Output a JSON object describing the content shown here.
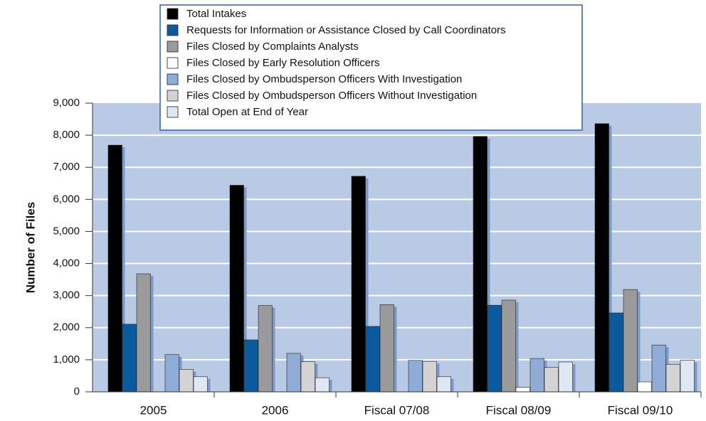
{
  "chart_data": {
    "type": "bar",
    "y_label": "Number of Files",
    "categories": [
      "2005",
      "2006",
      "Fiscal 07/08",
      "Fiscal 08/09",
      "Fiscal 09/10"
    ],
    "series": [
      {
        "name": "Total Intakes",
        "color": "#000000",
        "values": [
          7690,
          6440,
          6720,
          7960,
          8360
        ]
      },
      {
        "name": "Requests for Information or Assistance Closed by Call Coordinators",
        "color": "#0b5a9e",
        "values": [
          2110,
          1620,
          2040,
          2700,
          2460
        ]
      },
      {
        "name": "Files Closed by Complaints Analysts",
        "color": "#9a9a9a",
        "values": [
          3680,
          2690,
          2720,
          2860,
          3190
        ]
      },
      {
        "name": "Files Closed by Early Resolution Officers",
        "color": "#ffffff",
        "values": [
          0,
          0,
          0,
          140,
          310
        ]
      },
      {
        "name": "Files Closed by Ombudsperson Officers With Investigation",
        "color": "#8eacd6",
        "values": [
          1160,
          1200,
          980,
          1040,
          1460
        ]
      },
      {
        "name": "Files Closed by Ombudsperson Officers Without Investigation",
        "color": "#d3d3d3",
        "values": [
          700,
          940,
          950,
          760,
          860
        ]
      },
      {
        "name": "Total Open at End of Year",
        "color": "#dfe6f4",
        "values": [
          470,
          440,
          470,
          930,
          990
        ]
      }
    ],
    "ylim": [
      0,
      9000
    ],
    "yticks": [
      0,
      {
        "value": 1000,
        "label": "1,000"
      },
      {
        "value": 2000,
        "label": "2,000"
      },
      {
        "value": 3000,
        "label": "3,000"
      },
      {
        "value": 4000,
        "label": "4,000"
      },
      {
        "value": 5000,
        "label": "5,000"
      },
      {
        "value": 6000,
        "label": "6,000"
      },
      {
        "value": 7000,
        "label": "7,000"
      },
      {
        "value": 8000,
        "label": "8,000"
      },
      {
        "value": {
          "value": 9000,
          "label": "9,000"
        },
        "label": "9,000"
      }
    ],
    "grid": true,
    "legend_position": "top"
  }
}
